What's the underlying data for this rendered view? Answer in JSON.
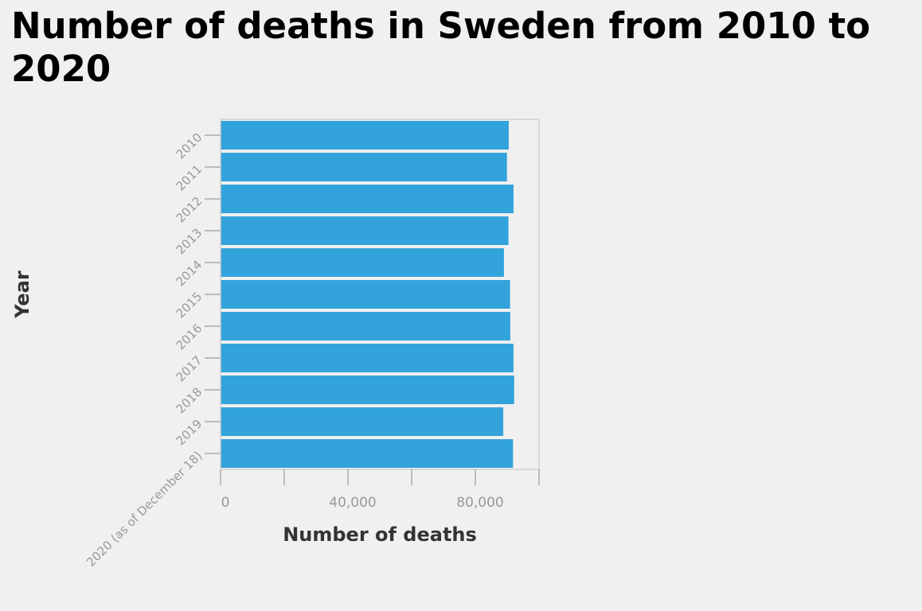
{
  "chart_data": {
    "type": "bar",
    "orientation": "horizontal",
    "title": "Number of deaths in Sweden from 2010 to 2020",
    "xlabel": "Number of deaths",
    "ylabel": "Year",
    "categories": [
      "2010",
      "2011",
      "2012",
      "2013",
      "2014",
      "2015",
      "2016",
      "2017",
      "2018",
      "2019",
      "2020 (as of December 18)"
    ],
    "values": [
      90487,
      89938,
      91990,
      90402,
      88976,
      90907,
      90982,
      91972,
      92185,
      88766,
      91834
    ],
    "xlim": [
      0,
      100000
    ],
    "x_ticks": [
      0,
      20000,
      40000,
      60000,
      80000,
      100000
    ],
    "x_tick_labels": [
      "0",
      "",
      "40,000",
      "",
      "80,000",
      ""
    ],
    "bar_color": "#33a3db",
    "grid": false
  }
}
